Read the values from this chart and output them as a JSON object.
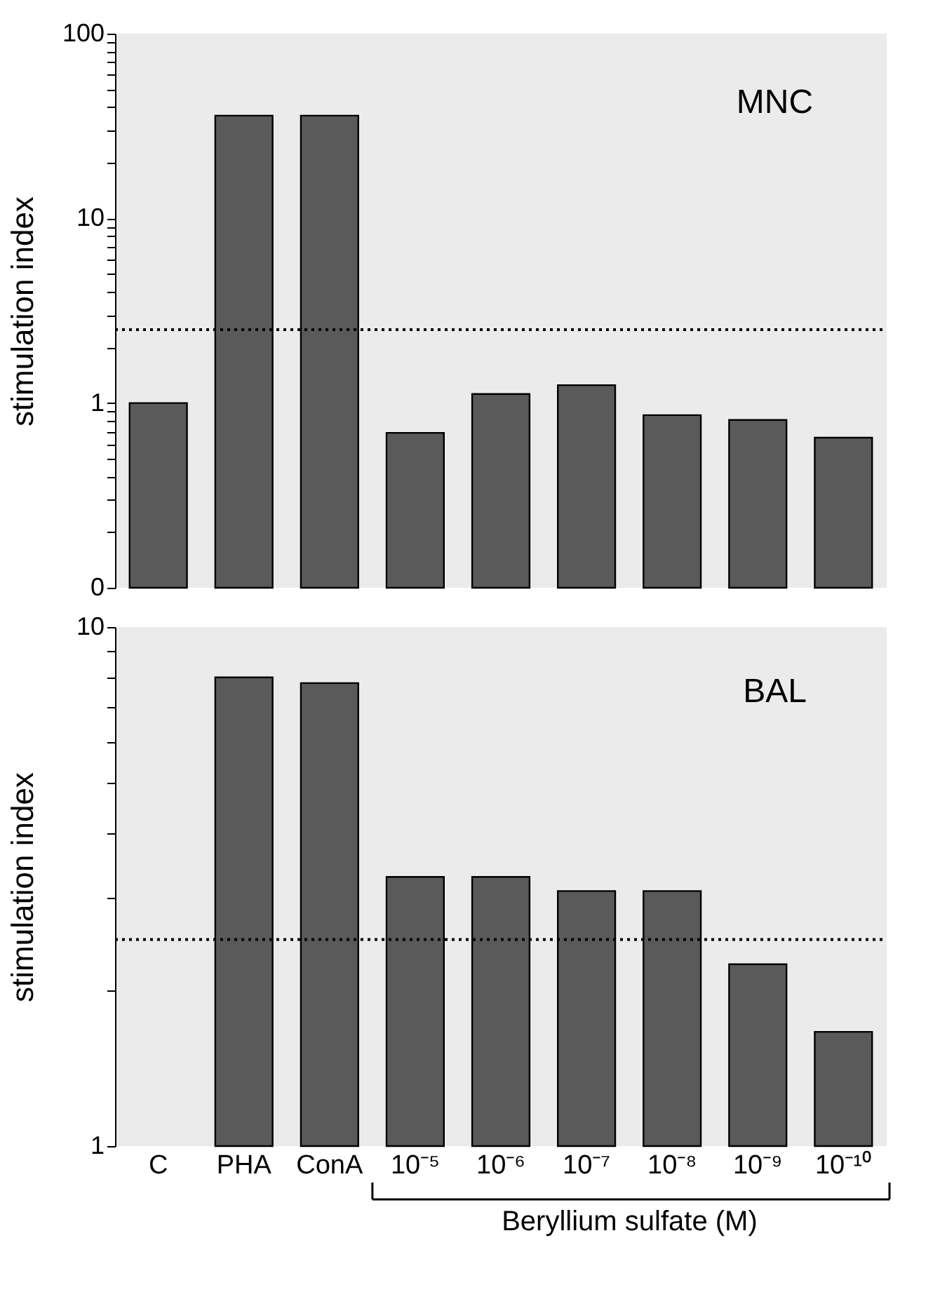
{
  "chart_data": [
    {
      "type": "bar",
      "categories": [
        null,
        null,
        null,
        null,
        null,
        null,
        null,
        null,
        null
      ],
      "values": [
        1.0,
        36,
        36,
        0.69,
        1.12,
        1.25,
        0.86,
        0.81,
        0.65
      ],
      "color": "#5a5a5a",
      "ylabel": "stimulation index",
      "log": true,
      "ylim": [
        0.1,
        100
      ],
      "yticks": [
        {
          "value": 0.1,
          "label": "0"
        },
        {
          "value": 0.2,
          "label": null
        },
        {
          "value": 0.3,
          "label": null
        },
        {
          "value": 0.4,
          "label": null
        },
        {
          "value": 0.5,
          "label": null
        },
        {
          "value": 0.6,
          "label": null
        },
        {
          "value": 0.7,
          "label": null
        },
        {
          "value": 0.8,
          "label": null
        },
        {
          "value": 0.9,
          "label": null
        },
        1,
        {
          "value": 2,
          "label": null
        },
        {
          "value": 3,
          "label": null
        },
        {
          "value": 4,
          "label": null
        },
        {
          "value": 5,
          "label": null
        },
        {
          "value": 6,
          "label": null
        },
        {
          "value": 7,
          "label": null
        },
        {
          "value": 8,
          "label": null
        },
        {
          "value": 9,
          "label": null
        },
        10,
        {
          "value": 20,
          "label": null
        },
        {
          "value": 30,
          "label": null
        },
        {
          "value": 40,
          "label": null
        },
        {
          "value": 50,
          "label": null
        },
        {
          "value": 60,
          "label": null
        },
        {
          "value": 70,
          "label": null
        },
        {
          "value": 80,
          "label": null
        },
        {
          "value": 90,
          "label": null
        },
        100
      ],
      "ref_lines": [
        {
          "axis": "y",
          "value": 2.5,
          "line_style": "dotted",
          "color": "#000000"
        }
      ],
      "annotations": [
        "MNC"
      ],
      "grid": false,
      "tick_labels": "y"
    },
    {
      "type": "bar",
      "categories": [
        "C",
        "PHA",
        "ConA",
        "10⁻⁵",
        "10⁻⁶",
        "10⁻⁷",
        "10⁻⁸",
        "10⁻⁹",
        "10⁻¹⁰"
      ],
      "values": [
        null,
        8.0,
        7.8,
        3.3,
        3.3,
        3.1,
        3.1,
        2.24,
        1.66
      ],
      "color": "#5a5a5a",
      "ylabel": "stimulation index",
      "xlabel": "Beryllium sulfate (M)",
      "log": true,
      "ylim": [
        1,
        10
      ],
      "yticks": [
        1,
        {
          "value": 2,
          "label": null
        },
        {
          "value": 3,
          "label": null
        },
        {
          "value": 4,
          "label": null
        },
        {
          "value": 5,
          "label": null
        },
        {
          "value": 6,
          "label": null
        },
        {
          "value": 7,
          "label": null
        },
        {
          "value": 8,
          "label": null
        },
        {
          "value": 9,
          "label": null
        },
        10
      ],
      "ref_lines": [
        {
          "axis": "y",
          "value": 2.5,
          "line_style": "dotted",
          "color": "#000000"
        }
      ],
      "annotations": [
        "BAL"
      ],
      "grid": false
    }
  ]
}
